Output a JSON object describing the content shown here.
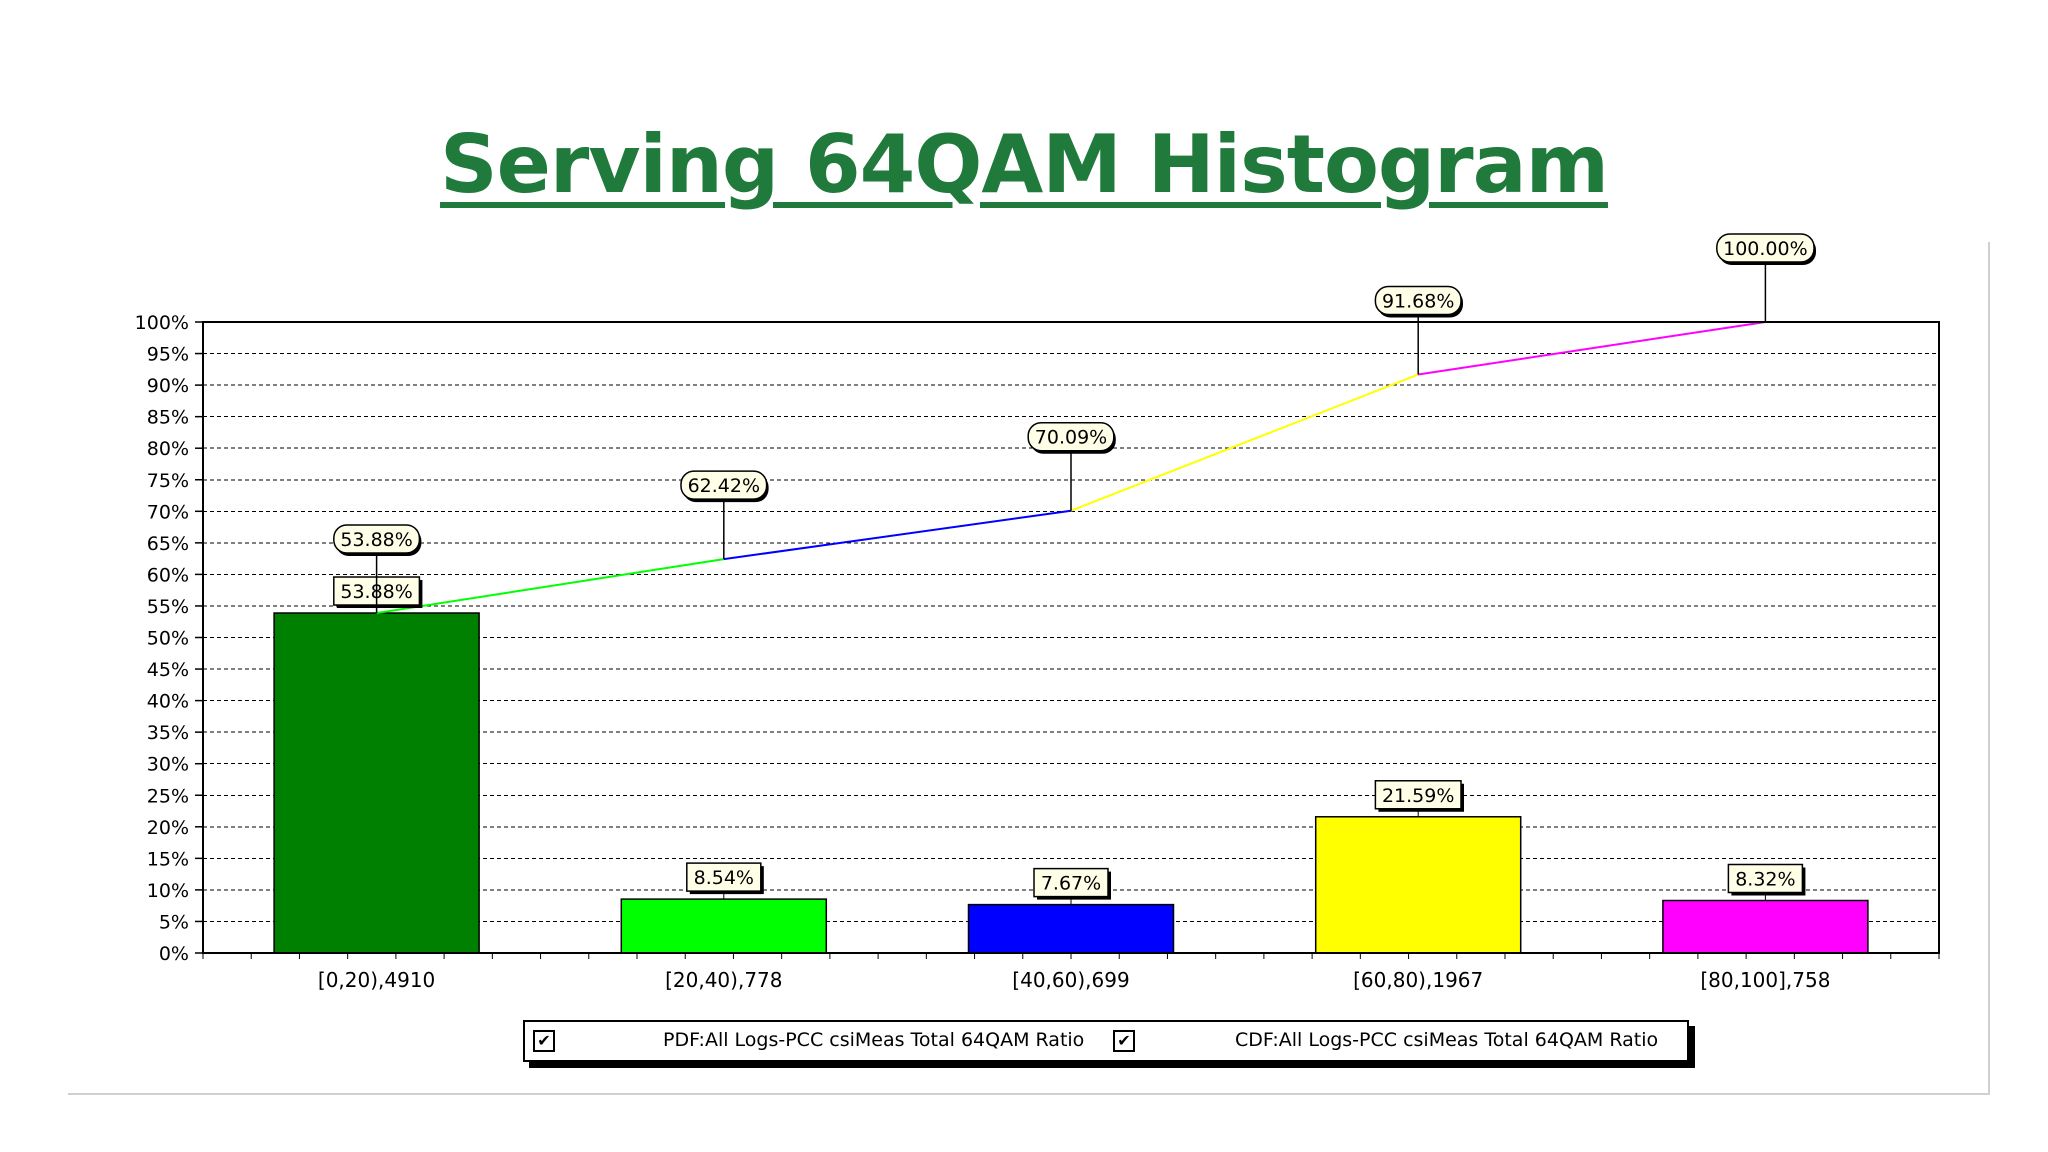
{
  "slide": {
    "title": "Serving 64QAM Histogram"
  },
  "chart_data": {
    "type": "bar",
    "categories": [
      "[0,20),4910",
      "[20,40),778",
      "[40,60),699",
      "[60,80),1967",
      "[80,100],758"
    ],
    "series": [
      {
        "name": "PDF:All Logs-PCC csiMeas Total 64QAM Ratio",
        "type": "bar",
        "values": [
          53.88,
          8.54,
          7.67,
          21.59,
          8.32
        ],
        "labels": [
          "53.88%",
          "8.54%",
          "7.67%",
          "21.59%",
          "8.32%"
        ]
      },
      {
        "name": "CDF:All Logs-PCC csiMeas Total 64QAM Ratio",
        "type": "line",
        "values": [
          53.88,
          62.42,
          70.09,
          91.68,
          100.0
        ],
        "labels": [
          "53.88%",
          "62.42%",
          "70.09%",
          "91.68%",
          "100.00%"
        ]
      }
    ],
    "bar_colors": [
      "#008000",
      "#00ff00",
      "#0000ff",
      "#ffff00",
      "#ff00ff"
    ],
    "line_colors": [
      "#00ff00",
      "#0000ff",
      "#ffff00",
      "#ff00ff"
    ],
    "ylim": [
      0,
      100
    ],
    "yticks": [
      0,
      5,
      10,
      15,
      20,
      25,
      30,
      35,
      40,
      45,
      50,
      55,
      60,
      65,
      70,
      75,
      80,
      85,
      90,
      95,
      100
    ],
    "ytick_labels": [
      "0%",
      "5%",
      "10%",
      "15%",
      "20%",
      "25%",
      "30%",
      "35%",
      "40%",
      "45%",
      "50%",
      "55%",
      "60%",
      "65%",
      "70%",
      "75%",
      "80%",
      "85%",
      "90%",
      "95%",
      "100%"
    ],
    "grid": true,
    "legend_position": "bottom"
  },
  "legend": {
    "items": [
      {
        "label": "PDF:All Logs-PCC csiMeas Total 64QAM Ratio",
        "checked": true,
        "check_mark": "✔"
      },
      {
        "label": "CDF:All Logs-PCC csiMeas Total 64QAM Ratio",
        "checked": true,
        "check_mark": "✔"
      }
    ]
  }
}
